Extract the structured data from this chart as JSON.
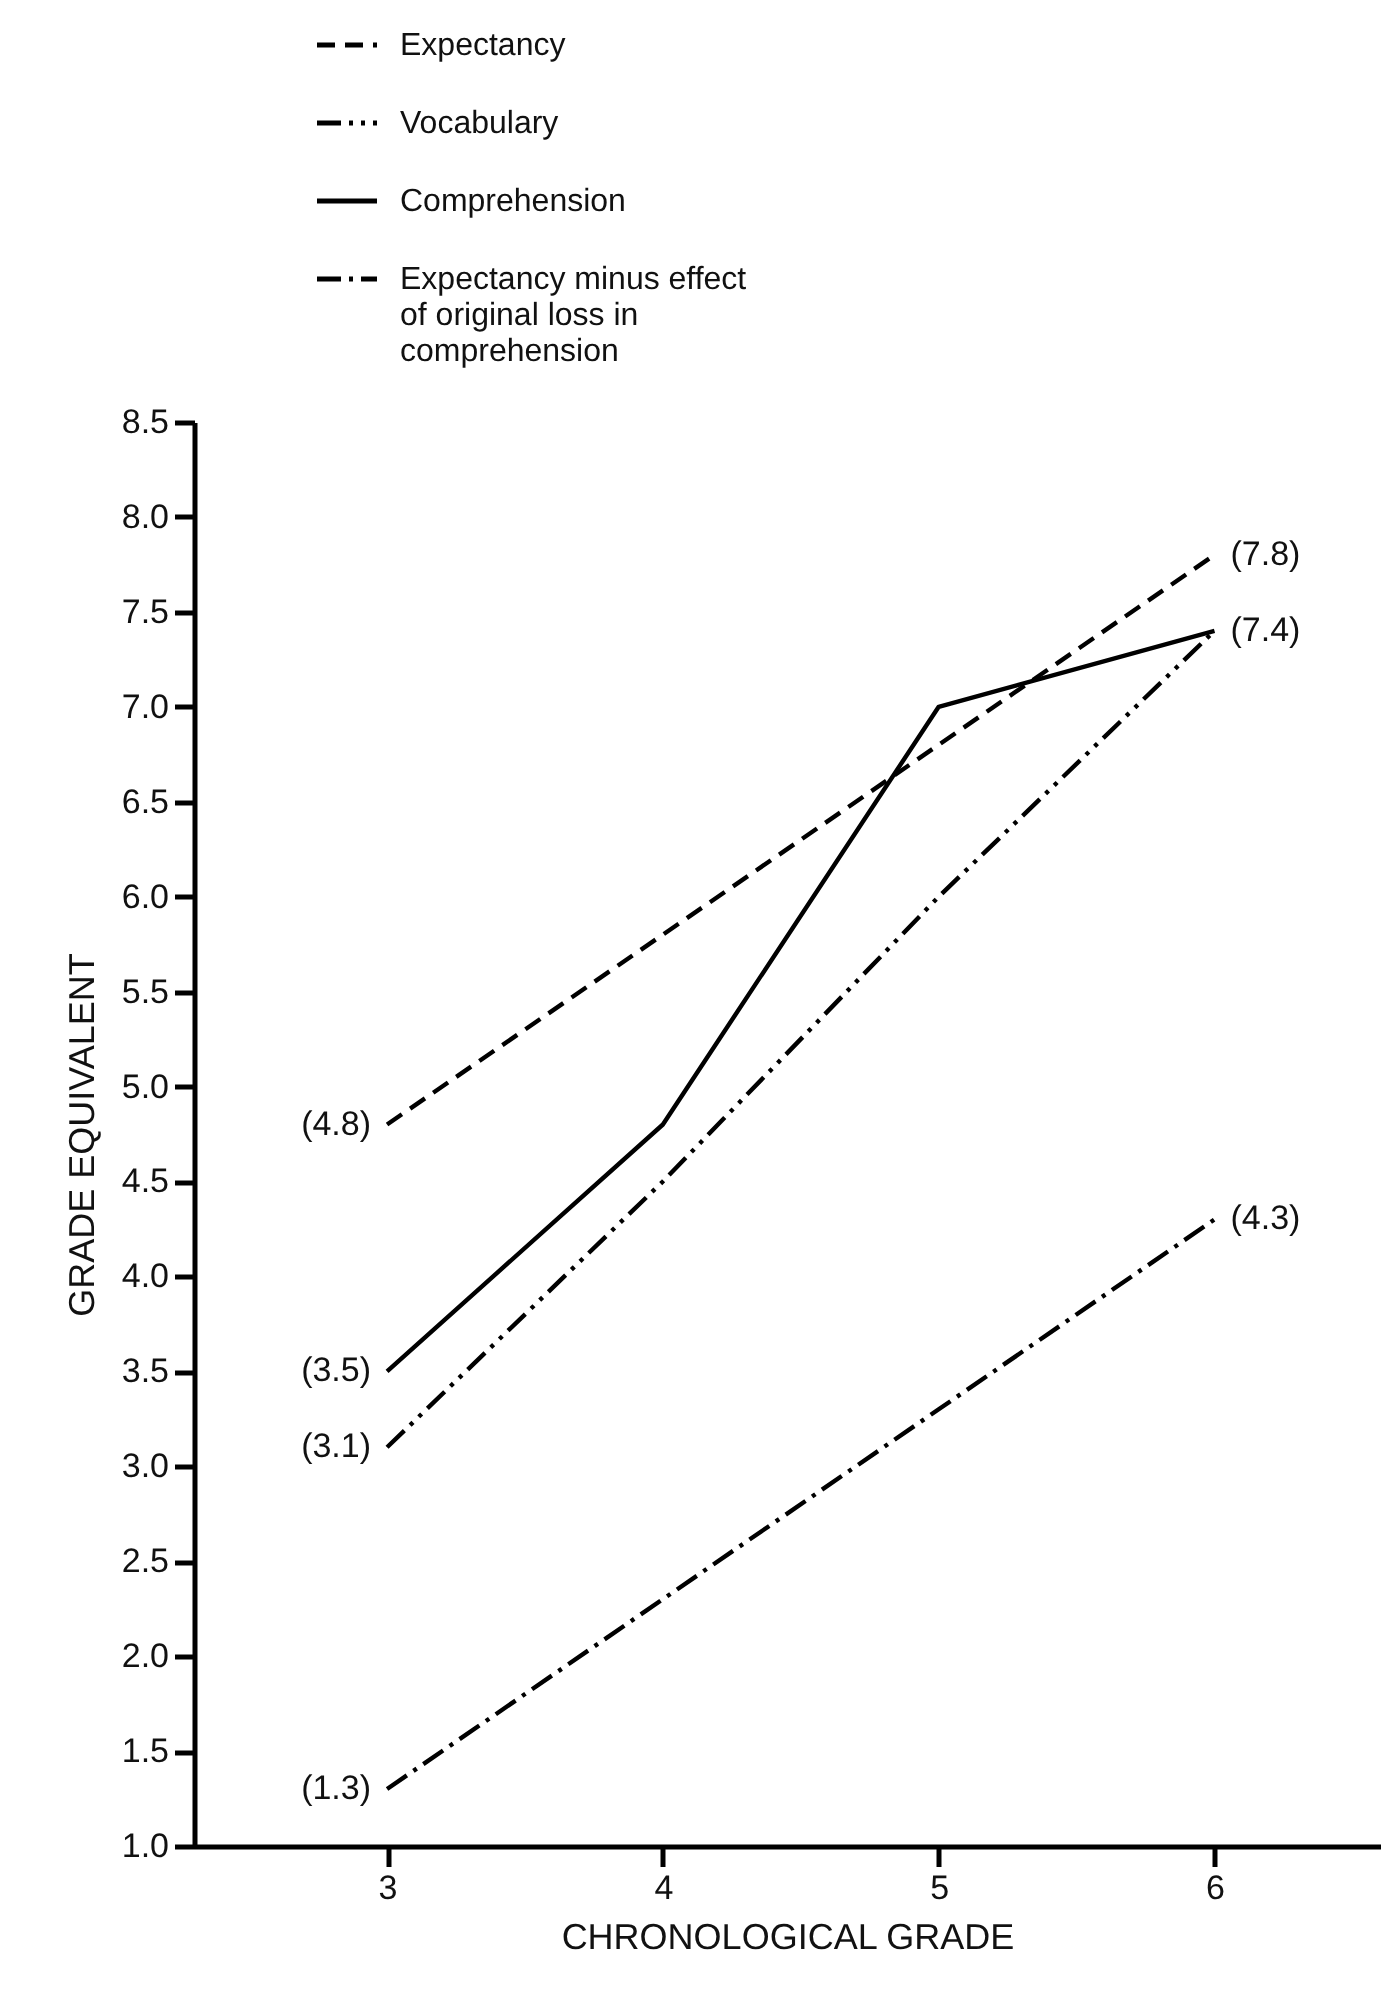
{
  "chart_data": {
    "type": "line",
    "xlabel": "CHRONOLOGICAL GRADE",
    "ylabel": "GRADE EQUIVALENT",
    "x": [
      3,
      4,
      5,
      6
    ],
    "series": [
      {
        "name": "Expectancy",
        "color": "#000000",
        "line_style": "dashed",
        "values": [
          4.8,
          5.8,
          6.8,
          7.8
        ],
        "value_labels": [
          "(4.8)",
          null,
          null,
          "(7.8)"
        ]
      },
      {
        "name": "Vocabulary",
        "color": "#000000",
        "line_style": "dashdotdot",
        "values": [
          3.1,
          4.5,
          6.0,
          7.4
        ],
        "value_labels": [
          "(3.1)",
          null,
          null,
          null
        ]
      },
      {
        "name": "Comprehension",
        "color": "#000000",
        "line_style": "solid",
        "values": [
          3.5,
          4.8,
          7.0,
          7.4
        ],
        "value_labels": [
          "(3.5)",
          null,
          null,
          "(7.4)"
        ]
      },
      {
        "name": "Expectancy minus effect of original loss in comprehension",
        "color": "#000000",
        "line_style": "dashdot",
        "values": [
          1.3,
          2.3,
          3.3,
          4.3
        ],
        "value_labels": [
          "(1.3)",
          null,
          null,
          "(4.3)"
        ]
      }
    ],
    "xlim": [
      2.3,
      6.6
    ],
    "xticks": [
      3,
      4,
      5,
      6
    ],
    "ylim": [
      1.0,
      8.5
    ],
    "yticks": [
      {
        "value": 1.0,
        "label": "1.0"
      },
      {
        "value": 1.5,
        "label": "1.5"
      },
      {
        "value": 2.0,
        "label": "2.0"
      },
      {
        "value": 2.5,
        "label": "2.5"
      },
      {
        "value": 3.0,
        "label": "3.0"
      },
      {
        "value": 3.5,
        "label": "3.5"
      },
      {
        "value": 4.0,
        "label": "4.0"
      },
      {
        "value": 4.5,
        "label": "4.5"
      },
      {
        "value": 5.0,
        "label": "5.0"
      },
      {
        "value": 5.5,
        "label": "5.5"
      },
      {
        "value": 6.0,
        "label": "6.0"
      },
      {
        "value": 6.5,
        "label": "6.5"
      },
      {
        "value": 7.0,
        "label": "7.0"
      },
      {
        "value": 7.5,
        "label": "7.5"
      },
      {
        "value": 8.0,
        "label": "8.0"
      },
      {
        "value": 8.5,
        "label": "8.5"
      }
    ],
    "grid": false,
    "legend": "top",
    "marker": "none"
  }
}
